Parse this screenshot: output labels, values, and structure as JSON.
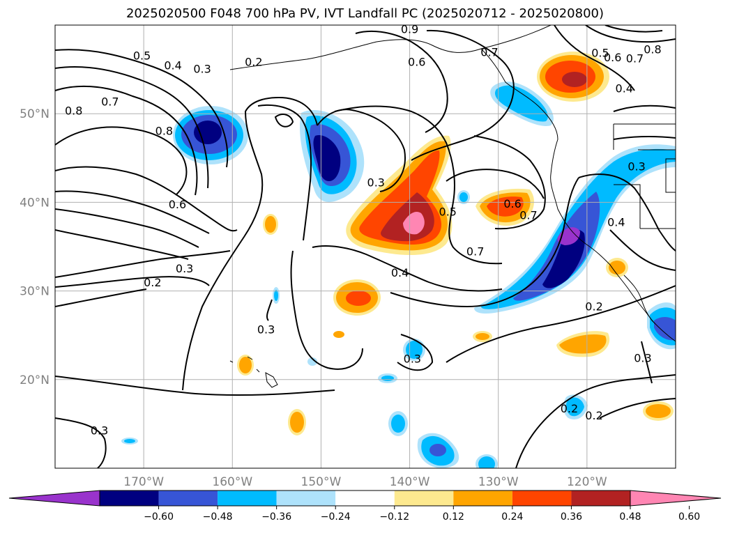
{
  "title": "2025020500 F048 700 hPa PV, IVT Landfall PC (2025020712 - 2025020800)",
  "map": {
    "lon_range": [
      -180,
      -110
    ],
    "lat_range": [
      10,
      60
    ],
    "lat_ticks": [
      {
        "value": 20,
        "label": "20°N"
      },
      {
        "value": 30,
        "label": "30°N"
      },
      {
        "value": 40,
        "label": "40°N"
      },
      {
        "value": 50,
        "label": "50°N"
      }
    ],
    "lon_ticks": [
      {
        "value": -170,
        "label": "170°W"
      },
      {
        "value": -160,
        "label": "160°W"
      },
      {
        "value": -150,
        "label": "150°W"
      },
      {
        "value": -140,
        "label": "140°W"
      },
      {
        "value": -130,
        "label": "130°W"
      },
      {
        "value": -120,
        "label": "120°W"
      }
    ],
    "gridlines": true,
    "contour_labels": [
      {
        "text": "0.5",
        "lon": -170.2,
        "lat": 56.5
      },
      {
        "text": "0.4",
        "lon": -166.7,
        "lat": 55.4
      },
      {
        "text": "0.3",
        "lon": -163.4,
        "lat": 55.0
      },
      {
        "text": "0.2",
        "lon": -157.6,
        "lat": 55.8
      },
      {
        "text": "0.8",
        "lon": -177.9,
        "lat": 50.3
      },
      {
        "text": "0.7",
        "lon": -173.8,
        "lat": 51.3
      },
      {
        "text": "0.8",
        "lon": -167.7,
        "lat": 48.0
      },
      {
        "text": "0.6",
        "lon": -166.2,
        "lat": 39.7
      },
      {
        "text": "0.3",
        "lon": -165.4,
        "lat": 32.5
      },
      {
        "text": "0.2",
        "lon": -169.0,
        "lat": 30.9
      },
      {
        "text": "0.3",
        "lon": -156.2,
        "lat": 25.6
      },
      {
        "text": "0.6",
        "lon": -139.2,
        "lat": 55.8
      },
      {
        "text": "0.7",
        "lon": -131.0,
        "lat": 56.9
      },
      {
        "text": "0.3",
        "lon": -143.8,
        "lat": 42.2
      },
      {
        "text": "0.5",
        "lon": -135.7,
        "lat": 38.9
      },
      {
        "text": "0.6",
        "lon": -128.4,
        "lat": 39.8
      },
      {
        "text": "0.7",
        "lon": -126.6,
        "lat": 38.5
      },
      {
        "text": "0.7",
        "lon": -132.6,
        "lat": 34.4
      },
      {
        "text": "0.4",
        "lon": -141.1,
        "lat": 32.0
      },
      {
        "text": "0.3",
        "lon": -139.7,
        "lat": 22.3
      },
      {
        "text": "0.5",
        "lon": -118.5,
        "lat": 56.8
      },
      {
        "text": "0.6",
        "lon": -117.1,
        "lat": 56.3
      },
      {
        "text": "0.7",
        "lon": -114.6,
        "lat": 56.2
      },
      {
        "text": "0.8",
        "lon": -112.6,
        "lat": 57.2
      },
      {
        "text": "0.4",
        "lon": -115.8,
        "lat": 52.8
      },
      {
        "text": "0.3",
        "lon": -114.4,
        "lat": 44.0
      },
      {
        "text": "0.4",
        "lon": -116.7,
        "lat": 37.7
      },
      {
        "text": "0.2",
        "lon": -119.2,
        "lat": 28.2
      },
      {
        "text": "0.3",
        "lon": -113.7,
        "lat": 22.4
      },
      {
        "text": "0.2",
        "lon": -122.0,
        "lat": 16.7
      },
      {
        "text": "0.2",
        "lon": -119.2,
        "lat": 15.9
      },
      {
        "text": "0.3",
        "lon": -175.0,
        "lat": 14.2
      },
      {
        "text": "0.9",
        "lon": -140.0,
        "lat": 59.5
      }
    ]
  },
  "colorbar": {
    "colors": [
      "#9933cc",
      "#000080",
      "#3755d6",
      "#00bbff",
      "#aee2fb",
      "#ffffff",
      "#fde98f",
      "#ffa500",
      "#ff4500",
      "#b22222",
      "#ff86b3"
    ],
    "ticks": [
      "−0.60",
      "−0.48",
      "−0.36",
      "−0.24",
      "−0.12",
      "0.12",
      "0.24",
      "0.36",
      "0.48",
      "0.60"
    ],
    "extend": "both"
  }
}
